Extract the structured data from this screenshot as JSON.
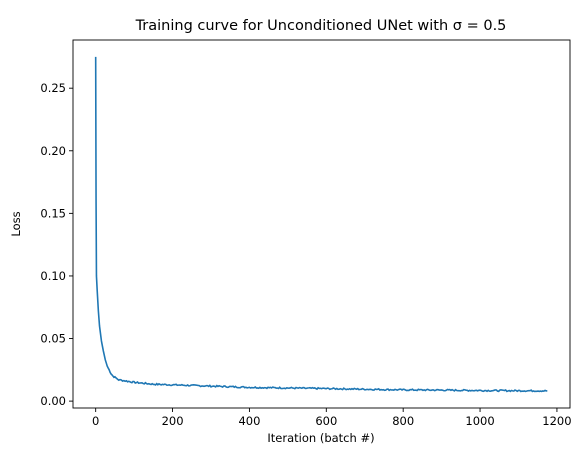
{
  "chart_data": {
    "type": "line",
    "title": "Training curve for Unconditioned UNet with σ = 0.5",
    "xlabel": "Iteration (batch #)",
    "ylabel": "Loss",
    "xlim": [
      -59,
      1234
    ],
    "ylim": [
      -0.0055,
      0.2885
    ],
    "xticks": [
      {
        "value": 0,
        "label": "0"
      },
      {
        "value": 200,
        "label": "200"
      },
      {
        "value": 400,
        "label": "400"
      },
      {
        "value": 600,
        "label": "600"
      },
      {
        "value": 800,
        "label": "800"
      },
      {
        "value": 1000,
        "label": "1000"
      },
      {
        "value": 1200,
        "label": "1200"
      }
    ],
    "yticks": [
      {
        "value": 0.0,
        "label": "0.00"
      },
      {
        "value": 0.05,
        "label": "0.05"
      },
      {
        "value": 0.1,
        "label": "0.10"
      },
      {
        "value": 0.15,
        "label": "0.15"
      },
      {
        "value": 0.2,
        "label": "0.20"
      },
      {
        "value": 0.25,
        "label": "0.25"
      }
    ],
    "grid": false,
    "legend": "none",
    "series": [
      {
        "color": "#1f77b4",
        "x": [
          0,
          1,
          2,
          4,
          7,
          10,
          15,
          20,
          25,
          30,
          35,
          40,
          45,
          50,
          60,
          70,
          80,
          100,
          150,
          200,
          300,
          400,
          500,
          600,
          700,
          800,
          900,
          1000,
          1100,
          1175
        ],
        "y": [
          0.275,
          0.16,
          0.1,
          0.088,
          0.072,
          0.06,
          0.048,
          0.04,
          0.033,
          0.028,
          0.025,
          0.022,
          0.02,
          0.019,
          0.017,
          0.0165,
          0.016,
          0.015,
          0.0135,
          0.013,
          0.012,
          0.011,
          0.0105,
          0.01,
          0.0095,
          0.009,
          0.0088,
          0.0085,
          0.0083,
          0.0082
        ]
      }
    ]
  }
}
